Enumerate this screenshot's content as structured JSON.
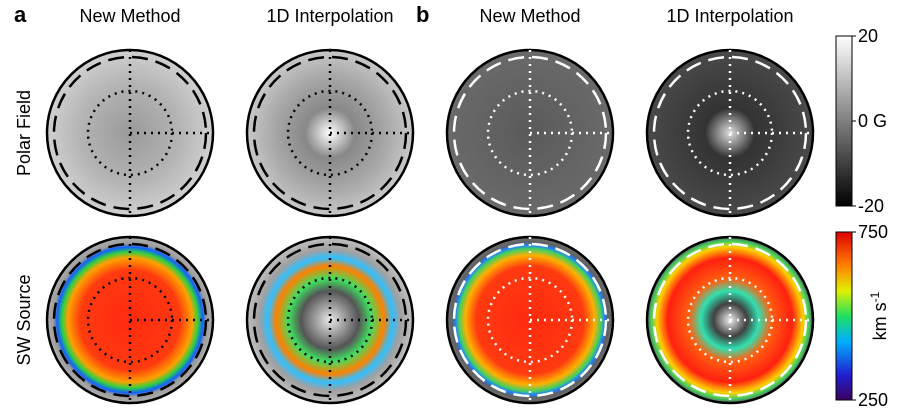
{
  "panels": [
    {
      "label": "a",
      "columns": [
        "New Method",
        "1D Interpolation"
      ]
    },
    {
      "label": "b",
      "columns": [
        "New Method",
        "1D Interpolation"
      ]
    }
  ],
  "rows": [
    "Polar Field",
    "SW Source"
  ],
  "colorbars": [
    {
      "range": [
        -20,
        20
      ],
      "ticks": [
        20,
        {
          "value": 0,
          "label": "0 G"
        },
        -20
      ]
    },
    {
      "range": [
        250,
        750
      ],
      "ticks": [
        750,
        250
      ],
      "unit": "km s",
      "unit_exponent": "-1"
    }
  ]
}
